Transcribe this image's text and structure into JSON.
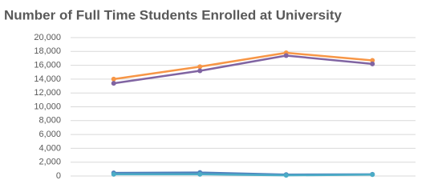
{
  "chart_data": {
    "type": "line",
    "title": "Number of Full Time Students Enrolled at University",
    "categories": [
      null,
      null,
      null,
      null
    ],
    "series": [
      {
        "color": "#f79646",
        "values": [
          14000,
          15800,
          17800,
          16700
        ]
      },
      {
        "color": "#8064a2",
        "values": [
          13400,
          15200,
          17400,
          16200
        ]
      },
      {
        "color": "#4f81bd",
        "values": [
          450,
          500,
          200,
          250
        ]
      },
      {
        "color": "#4bacc6",
        "values": [
          250,
          250,
          100,
          200
        ]
      }
    ],
    "ylim": [
      0,
      20000
    ],
    "yticks": [
      0,
      {
        "value": 2000,
        "label": "2,000"
      },
      {
        "value": 4000,
        "label": "4,000"
      },
      {
        "value": 6000,
        "label": "6,000"
      },
      {
        "value": 8000,
        "label": "8,000"
      },
      {
        "value": 10000,
        "label": "10,000"
      },
      {
        "value": 12000,
        "label": "12,000"
      },
      {
        "value": 14000,
        "label": "14,000"
      },
      {
        "value": 16000,
        "label": "16,000"
      },
      {
        "value": 18000,
        "label": "18,000"
      },
      {
        "value": 20000,
        "label": "20,000"
      }
    ],
    "grid": true
  }
}
